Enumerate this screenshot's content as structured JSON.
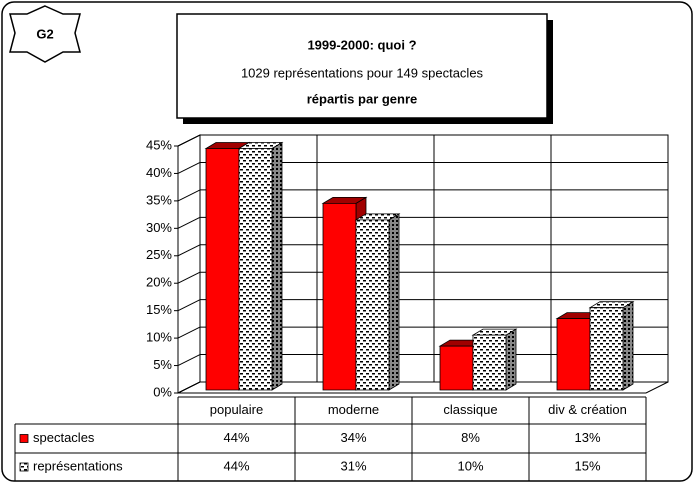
{
  "badge": "G2",
  "chart_data": {
    "type": "bar3d",
    "title": "1999-2000: quoi ?",
    "subtitle": "1029 représentations pour 149 spectacles",
    "subtitle2": "répartis par genre",
    "categories": [
      "populaire",
      "moderne",
      "classique",
      "div & création"
    ],
    "series": [
      {
        "name": "spectacles",
        "color": "#ff0000",
        "values": [
          44,
          34,
          8,
          13
        ],
        "value_labels": [
          "44%",
          "34%",
          "8%",
          "13%"
        ]
      },
      {
        "name": "représentations",
        "color": "pattern",
        "values": [
          44,
          31,
          10,
          15
        ],
        "value_labels": [
          "44%",
          "31%",
          "10%",
          "15%"
        ]
      }
    ],
    "ylim": [
      0,
      45
    ],
    "yticks": [
      {
        "value": 0,
        "label": "0%"
      },
      {
        "value": 5,
        "label": "5%"
      },
      {
        "value": 10,
        "label": "10%"
      },
      {
        "value": 15,
        "label": "15%"
      },
      {
        "value": 20,
        "label": "20%"
      },
      {
        "value": 25,
        "label": "25%"
      },
      {
        "value": 30,
        "label": "30%"
      },
      {
        "value": 35,
        "label": "35%"
      },
      {
        "value": 40,
        "label": "40%"
      },
      {
        "value": 45,
        "label": "45%"
      }
    ],
    "grid": true
  }
}
